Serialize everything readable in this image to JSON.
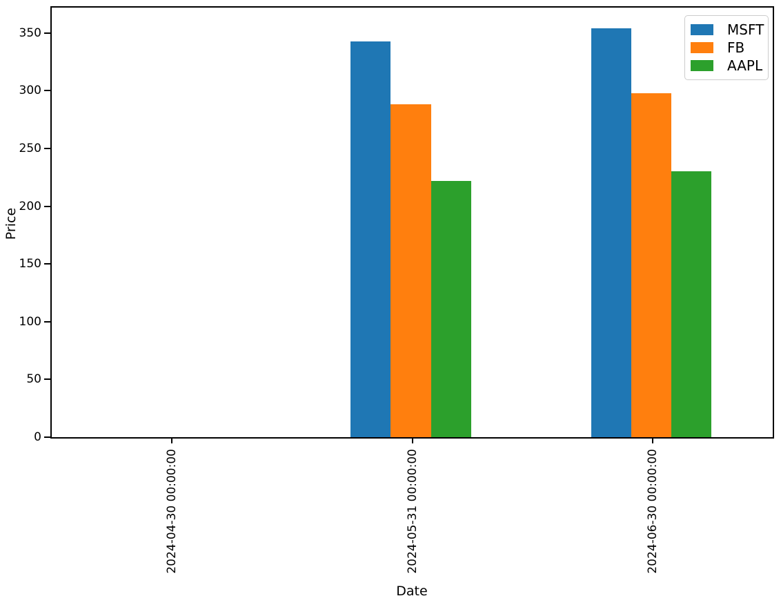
{
  "chart_data": {
    "type": "bar",
    "title": "",
    "xlabel": "Date",
    "ylabel": "Price",
    "categories": [
      "2024-04-30 00:00:00",
      "2024-05-31 00:00:00",
      "2024-06-30 00:00:00"
    ],
    "series": [
      {
        "name": "MSFT",
        "color": "#1f77b4",
        "values": [
          0,
          343,
          354
        ]
      },
      {
        "name": "FB",
        "color": "#ff7f0e",
        "values": [
          0,
          288,
          298
        ]
      },
      {
        "name": "AAPL",
        "color": "#2ca02c",
        "values": [
          0,
          222,
          230
        ]
      }
    ],
    "yticks": [
      0,
      50,
      100,
      150,
      200,
      250,
      300,
      350
    ],
    "ylim": [
      0,
      372
    ],
    "x_tick_rotation": 90,
    "grid": false,
    "legend_position": "upper right",
    "bar_group_width_fraction": 0.5,
    "axis_color": "#000000",
    "background_color": "#ffffff"
  }
}
